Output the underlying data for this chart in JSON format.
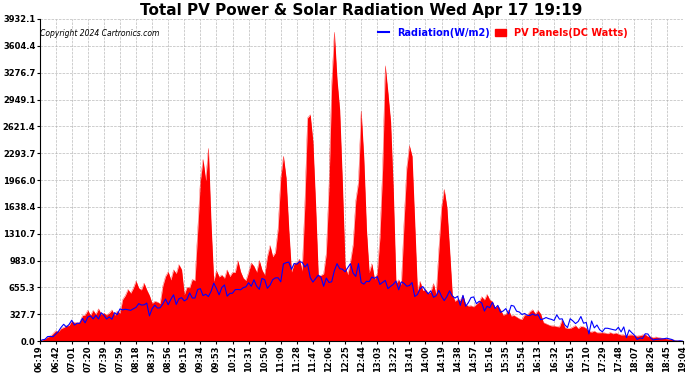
{
  "title": "Total PV Power & Solar Radiation Wed Apr 17 19:19",
  "copyright": "Copyright 2024 Cartronics.com",
  "legend_radiation": "Radiation(W/m2)",
  "legend_pv": "PV Panels(DC Watts)",
  "yticks": [
    0.0,
    327.7,
    655.3,
    983.0,
    1310.7,
    1638.4,
    1966.0,
    2293.7,
    2621.4,
    2949.1,
    3276.7,
    3604.4,
    3932.1
  ],
  "ymax": 3932.1,
  "ymin": 0.0,
  "color_pv": "#ff0000",
  "color_radiation": "#0000ff",
  "background": "#ffffff",
  "grid_color": "#aaaaaa",
  "title_fontsize": 11,
  "tick_fontsize": 6,
  "figsize": [
    6.9,
    3.75
  ],
  "dpi": 100,
  "time_labels": [
    "06:19",
    "06:42",
    "07:01",
    "07:20",
    "07:39",
    "07:59",
    "08:18",
    "08:37",
    "08:56",
    "09:15",
    "09:34",
    "09:53",
    "10:12",
    "10:31",
    "10:50",
    "11:09",
    "11:28",
    "11:47",
    "12:06",
    "12:25",
    "12:44",
    "13:03",
    "13:22",
    "13:41",
    "14:00",
    "14:19",
    "14:38",
    "14:57",
    "15:16",
    "15:35",
    "15:54",
    "16:13",
    "16:32",
    "16:51",
    "17:10",
    "17:29",
    "17:48",
    "18:07",
    "18:26",
    "18:45",
    "19:04"
  ]
}
